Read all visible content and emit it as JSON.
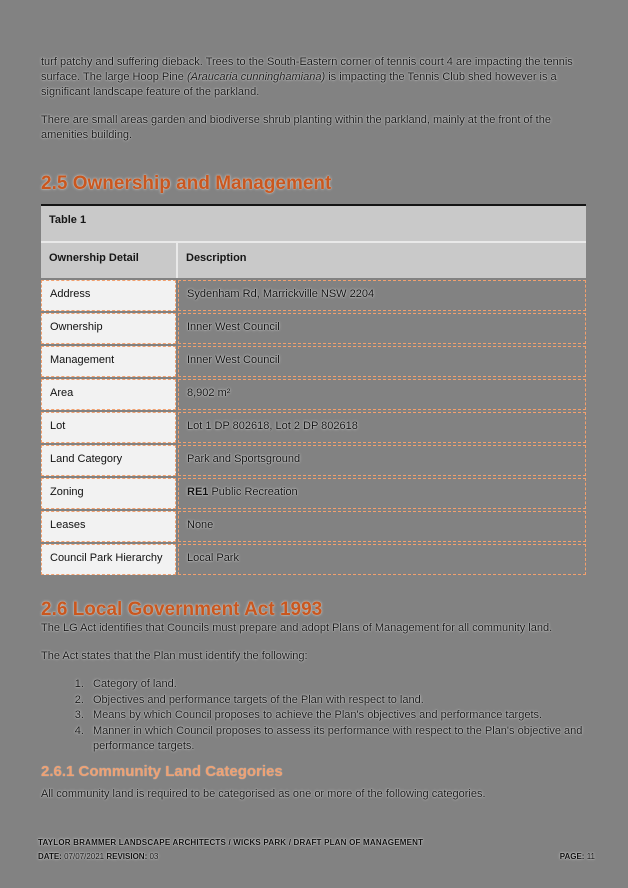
{
  "intro": {
    "paragraph1_start": "turf patchy and suffering dieback. Trees to the South-Eastern corner of tennis court 4 are impacting the tennis surface. The large Hoop Pine ",
    "paragraph1_species": "(Araucaria cunninghamiana)",
    "paragraph1_end": " is impacting the Tennis Club shed however is a significant landscape feature of the parkland.",
    "paragraph2": "There are small areas garden and biodiverse shrub planting within the parkland, mainly at the front of the amenities building."
  },
  "section_25": {
    "heading": "2.5 Ownership and Management",
    "table": {
      "title": "Table 1",
      "col1_header": "Ownership Detail",
      "col2_header": "Description",
      "rows": [
        {
          "label": "Address",
          "value": "Sydenham Rd, Marrickville NSW 2204"
        },
        {
          "label": "Ownership",
          "value": "Inner West Council"
        },
        {
          "label": "Management",
          "value": "Inner West Council"
        },
        {
          "label": "Area",
          "value": "8,902 m²"
        },
        {
          "label": "Lot",
          "value": "Lot 1 DP 802618, Lot 2 DP 802618"
        },
        {
          "label": "Land Category",
          "value": "Park and Sportsground"
        },
        {
          "label": "Zoning",
          "value_bold": "RE1",
          "value": " Public Recreation"
        },
        {
          "label": "Leases",
          "value": "None"
        },
        {
          "label": "Council Park Hierarchy",
          "value": "Local Park"
        }
      ]
    }
  },
  "section_26": {
    "heading": "2.6 Local Government Act 1993",
    "paragraph1": "The LG Act identifies that Councils must prepare and adopt Plans of Management for all community land.",
    "paragraph2": "The Act states that the Plan must identify the following:",
    "list": [
      "Category of land.",
      "Objectives and performance targets of the Plan with respect to land.",
      "Means by which Council proposes to achieve the Plan's objectives and performance targets.",
      "Manner in which Council proposes to assess its performance with respect to the Plan's objective and performance targets."
    ]
  },
  "section_261": {
    "heading": "2.6.1 Community Land Categories",
    "paragraph": "All community land is required to be categorised as one or more of the following categories."
  },
  "footer": {
    "line1": "TAYLOR BRAMMER LANDSCAPE ARCHITECTS / WICKS PARK / DRAFT PLAN OF MANAGEMENT",
    "date_label": "DATE:",
    "date_value": " 07/07/2021 ",
    "revision_label": "REVISION:",
    "revision_value": " 03",
    "page_label": "PAGE:",
    "page_value": " 11"
  },
  "colors": {
    "page_background": "#828282",
    "heading_orange": "#C9571F",
    "subheading_salmon": "#EFA173",
    "table_header_gray": "#c9c9c9",
    "table_label_cell": "#f2f2f2",
    "table_border_dashed": "#F2A06E"
  }
}
